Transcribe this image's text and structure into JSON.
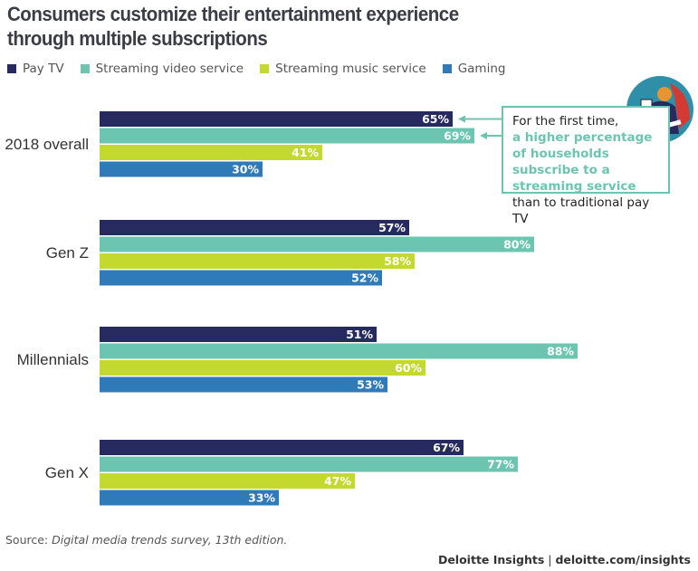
{
  "chart_data": {
    "type": "bar",
    "orientation": "horizontal",
    "title": "Consumers customize their entertainment experience through multiple subscriptions",
    "categories": [
      "2018 overall",
      "Gen Z",
      "Millennials",
      "Gen X"
    ],
    "series": [
      {
        "name": "Pay TV",
        "color": "#272a5e",
        "values": [
          65,
          57,
          51,
          67
        ]
      },
      {
        "name": "Streaming video service",
        "color": "#6cc5b0",
        "values": [
          69,
          80,
          88,
          77
        ]
      },
      {
        "name": "Streaming music service",
        "color": "#c3d92f",
        "values": [
          41,
          58,
          60,
          47
        ]
      },
      {
        "name": "Gaming",
        "color": "#2f7ab8",
        "values": [
          30,
          52,
          53,
          33
        ]
      }
    ],
    "value_suffix": "%",
    "xlim": [
      0,
      100
    ],
    "grid": false,
    "legend_position": "top-left"
  },
  "annotation": {
    "line1": "For the first time,",
    "highlight": "a higher percentage of households subscribe to a streaming service",
    "line_end": "than to traditional pay TV"
  },
  "source": {
    "label": "Source:",
    "text": "Digital media trends survey, 13th edition."
  },
  "brand": {
    "name": "Deloitte Insights",
    "separator": "|",
    "url": "deloitte.com/insights"
  }
}
